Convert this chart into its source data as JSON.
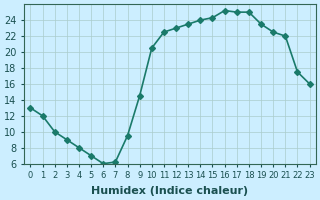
{
  "x": [
    0,
    1,
    2,
    3,
    4,
    5,
    6,
    7,
    8,
    9,
    10,
    11,
    12,
    13,
    14,
    15,
    16,
    17,
    18,
    19,
    20,
    21,
    22,
    23
  ],
  "y": [
    13.0,
    12.0,
    10.0,
    9.0,
    8.0,
    7.0,
    6.0,
    6.2,
    9.5,
    14.5,
    20.5,
    22.5,
    23.0,
    23.5,
    24.0,
    24.3,
    25.2,
    25.0,
    25.0,
    23.5,
    22.5,
    22.0,
    17.5,
    16.0
  ],
  "line_color": "#1a7a6a",
  "marker": "D",
  "marker_size": 3,
  "bg_color": "#cceeff",
  "grid_color": "#aacccc",
  "xlabel": "Humidex (Indice chaleur)",
  "ylim": [
    6,
    26
  ],
  "xlim": [
    -0.5,
    23.5
  ],
  "yticks": [
    6,
    8,
    10,
    12,
    14,
    16,
    18,
    20,
    22,
    24
  ],
  "xtick_labels": [
    "0",
    "1",
    "2",
    "3",
    "4",
    "5",
    "6",
    "7",
    "8",
    "9",
    "10",
    "11",
    "12",
    "13",
    "14",
    "15",
    "16",
    "17",
    "18",
    "19",
    "20",
    "21",
    "22",
    "23"
  ],
  "font_color": "#1a5050",
  "axis_color": "#336655",
  "tick_fontsize": 7,
  "label_fontsize": 8,
  "linewidth": 1.2
}
